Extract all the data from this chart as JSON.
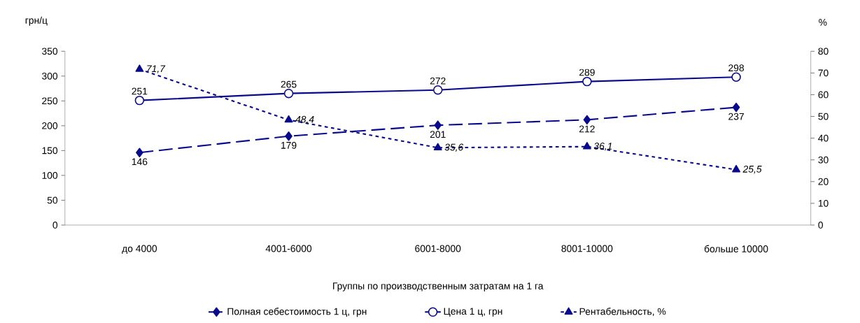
{
  "chart_data": {
    "type": "line",
    "xlabel": "Группы по производственным  затратам на 1 га",
    "ylabel": "грн/ц",
    "y2label": "%",
    "categories": [
      "до 4000",
      "4001-6000",
      "6001-8000",
      "8001-10000",
      "больше 10000"
    ],
    "series": [
      {
        "name": "Полная себестоимость 1 ц, грн",
        "color": "#0a0a8c",
        "marker": "diamond",
        "line_style": "dashed",
        "values": [
          146,
          179,
          201,
          212,
          237
        ],
        "value_labels": [
          "146",
          "179",
          "201",
          "212",
          "237"
        ]
      },
      {
        "name": "Цена 1 ц, грн",
        "color": "#0a0a8c",
        "marker": "circle",
        "line_style": "solid",
        "values": [
          251,
          265,
          272,
          289,
          298
        ],
        "value_labels": [
          "251",
          "265",
          "272",
          "289",
          "298"
        ]
      },
      {
        "name": "Рентабельность, %",
        "color": "#0a0a8c",
        "marker": "triangle",
        "line_style": "dotted",
        "axis": "y2",
        "values": [
          71.7,
          48.4,
          35.6,
          36.1,
          25.5
        ],
        "value_labels": [
          "*71,7*",
          "*48,4*",
          "*35,6*",
          "*36,1*",
          "*25,5*"
        ]
      }
    ],
    "ylim": [
      0,
      350
    ],
    "yticks": [
      0,
      50,
      100,
      150,
      200,
      250,
      300,
      350
    ],
    "y2lim": [
      0,
      80
    ],
    "y2ticks": [
      0,
      10,
      20,
      30,
      40,
      50,
      60,
      70,
      80
    ],
    "legend": "bottom"
  }
}
